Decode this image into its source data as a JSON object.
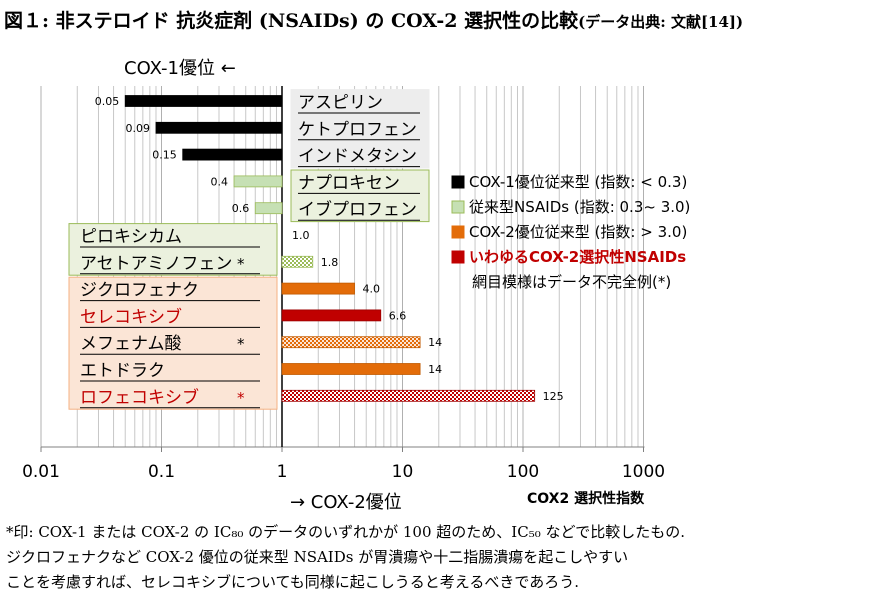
{
  "title": {
    "main": "図１: 非ステロイド 抗炎症剤 (NSAIDs) の COX-2 選択性の比較",
    "suffix": "(データ出典: 文献[14])"
  },
  "labels": {
    "cox1_direction": "COX-1優位 ←",
    "cox2_direction": "→ COX-2優位",
    "x_axis": "COX2 選択性指数"
  },
  "footnote": [
    "*印: COX-1 または COX-2 の IC₈₀ のデータのいずれかが 100 超のため、IC₅₀ などで比較したもの.",
    "ジクロフェナクなど COX-2 優位の従来型 NSAIDs が胃潰瘍や十二指腸潰瘍を起こしやすい",
    "ことを考慮すれば、セレコキシブについても同様に起こしうると考えるべきであろう."
  ],
  "colors": {
    "black": "#000000",
    "light_green": "#c6e0b4",
    "orange": "#e36c09",
    "red": "#c00000",
    "grid": "#c8c8c8",
    "panel_gray": "#ededed",
    "panel_green": "#ebf1de",
    "panel_peach": "#fbe5d6",
    "panel_green_border": "#9bbb59",
    "panel_peach_border": "#f4b183"
  },
  "legend": [
    {
      "label": "COX-1優位従来型 (指数: < 0.3)",
      "category": "black"
    },
    {
      "label": "従来型NSAIDs (指数: 0.3~ 3.0)",
      "category": "light_green"
    },
    {
      "label": "COX-2優位従来型 (指数: > 3.0)",
      "category": "orange"
    },
    {
      "label": "いわゆるCOX-2選択性NSAIDs",
      "category": "red"
    },
    {
      "label": "網目模様はデータ不完全例(*)",
      "category": "note"
    }
  ],
  "chart_data": {
    "type": "bar",
    "orientation": "horizontal",
    "x_scale": "log",
    "xlim": [
      0.01,
      1000
    ],
    "baseline": 1,
    "x_ticks": [
      "0.01",
      "0.1",
      "1",
      "10",
      "100",
      "1000"
    ],
    "xlabel": "COX2 選択性指数",
    "grid": true,
    "legend_position": "right",
    "categories": [
      "アスピリン",
      "ケトプロフェン",
      "インドメタシン",
      "ナプロキセン",
      "イブプロフェン",
      "ピロキシカム",
      "アセトアミノフェン",
      "ジクロフェナク",
      "セレコキシブ",
      "メフェナム酸",
      "エトドラク",
      "ロフェコキシブ"
    ],
    "bars": [
      {
        "name": "アスピリン",
        "value": 0.05,
        "label": "0.05",
        "category": "black",
        "hatched": false,
        "asterisk": false
      },
      {
        "name": "ケトプロフェン",
        "value": 0.09,
        "label": "0.09",
        "category": "black",
        "hatched": false,
        "asterisk": false
      },
      {
        "name": "インドメタシン",
        "value": 0.15,
        "label": "0.15",
        "category": "black",
        "hatched": false,
        "asterisk": false
      },
      {
        "name": "ナプロキセン",
        "value": 0.4,
        "label": "0.4",
        "category": "light_green",
        "hatched": false,
        "asterisk": false
      },
      {
        "name": "イブプロフェン",
        "value": 0.6,
        "label": "0.6",
        "category": "light_green",
        "hatched": false,
        "asterisk": false
      },
      {
        "name": "ピロキシカム",
        "value": 1.0,
        "label": "1.0",
        "category": "light_green",
        "hatched": false,
        "asterisk": false
      },
      {
        "name": "アセトアミノフェン",
        "value": 1.8,
        "label": "1.8",
        "category": "light_green",
        "hatched": true,
        "asterisk": true
      },
      {
        "name": "ジクロフェナク",
        "value": 4.0,
        "label": "4.0",
        "category": "orange",
        "hatched": false,
        "asterisk": false
      },
      {
        "name": "セレコキシブ",
        "value": 6.6,
        "label": "6.6",
        "category": "red",
        "hatched": false,
        "asterisk": false
      },
      {
        "name": "メフェナム酸",
        "value": 14,
        "label": "14",
        "category": "orange",
        "hatched": true,
        "asterisk": true
      },
      {
        "name": "エトドラク",
        "value": 14,
        "label": "14",
        "category": "orange",
        "hatched": false,
        "asterisk": false
      },
      {
        "name": "ロフェコキシブ",
        "value": 125,
        "label": "125",
        "category": "red",
        "hatched": true,
        "asterisk": true
      }
    ]
  }
}
